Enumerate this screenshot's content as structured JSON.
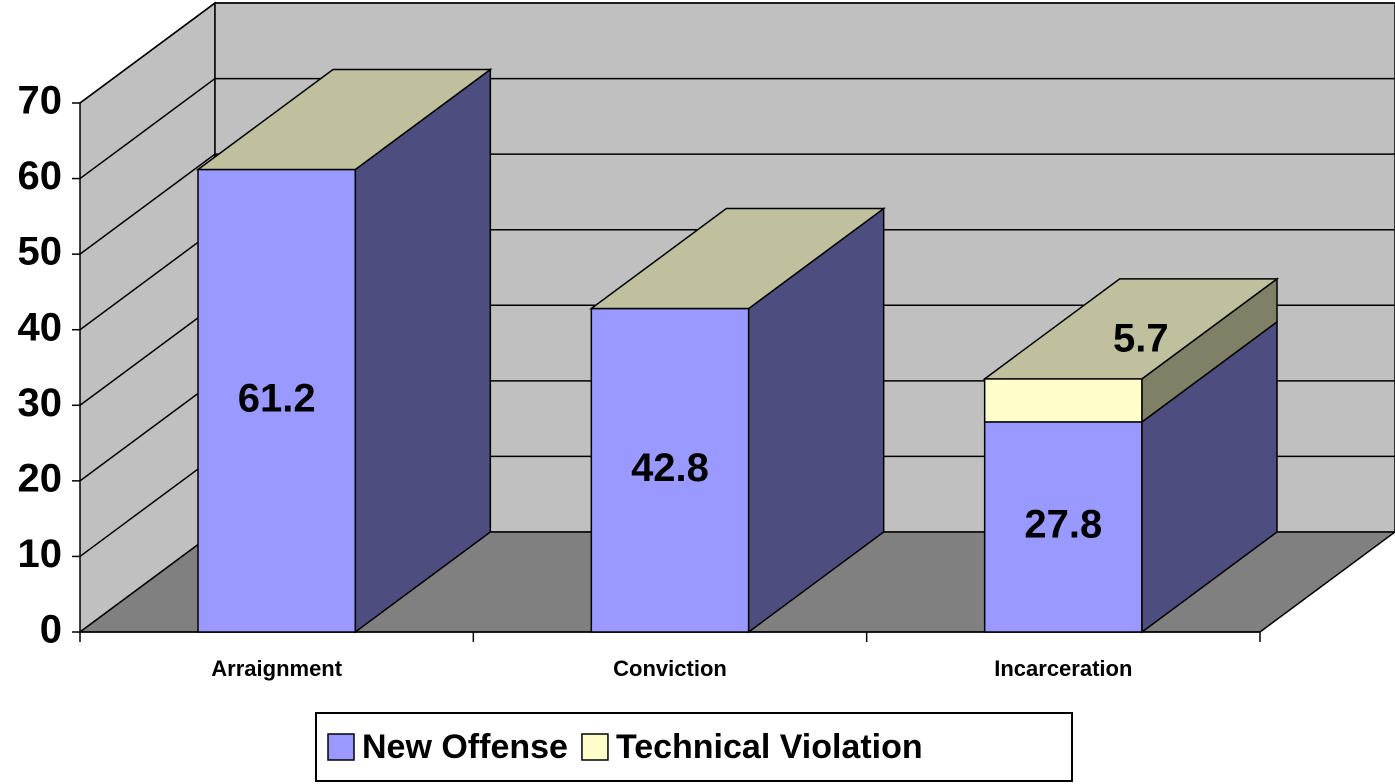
{
  "chart_data": {
    "type": "bar3d_stacked",
    "categories": [
      "Arraignment",
      "Conviction",
      "Incarceration"
    ],
    "series": [
      {
        "name": "New Offense",
        "color": "#9999ff",
        "values": [
          61.2,
          42.8,
          27.8
        ]
      },
      {
        "name": "Technical Violation",
        "color": "#ffffcc",
        "values": [
          null,
          null,
          5.7
        ]
      }
    ],
    "ylim": [
      0,
      70
    ],
    "yticks": [
      0,
      10,
      20,
      30,
      40,
      50,
      60,
      70
    ],
    "grid": true,
    "legend": "bottom"
  }
}
